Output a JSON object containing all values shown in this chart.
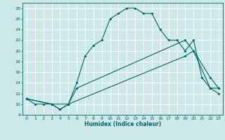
{
  "xlabel": "Humidex (Indice chaleur)",
  "xlim": [
    -0.5,
    23.5
  ],
  "ylim": [
    8,
    29
  ],
  "xticks": [
    0,
    1,
    2,
    3,
    4,
    5,
    6,
    7,
    8,
    9,
    10,
    11,
    12,
    13,
    14,
    15,
    16,
    17,
    18,
    19,
    20,
    21,
    22,
    23
  ],
  "yticks": [
    8,
    10,
    12,
    14,
    16,
    18,
    20,
    22,
    24,
    26,
    28
  ],
  "background_color": "#cce8e8",
  "line_color": "#006666",
  "grid_color": "#b0d8d8",
  "line1_x": [
    0,
    1,
    2,
    3,
    4,
    5,
    6,
    7,
    8,
    9,
    10,
    11,
    12,
    13,
    14,
    15,
    16,
    17,
    18,
    19,
    20,
    21,
    22,
    23
  ],
  "line1_y": [
    11,
    10,
    10,
    10,
    9,
    10,
    14,
    19,
    21,
    22,
    26,
    27,
    28,
    28,
    27,
    27,
    24,
    22,
    22,
    20,
    22,
    15,
    13,
    13
  ],
  "line2_x": [
    0,
    3,
    4,
    5,
    6,
    19,
    20,
    22,
    23
  ],
  "line2_y": [
    11,
    10,
    9,
    10,
    13,
    22,
    20,
    15,
    13
  ],
  "line3_x": [
    0,
    3,
    5,
    19,
    20,
    22,
    23
  ],
  "line3_y": [
    11,
    10,
    10,
    19,
    20,
    13,
    12
  ]
}
